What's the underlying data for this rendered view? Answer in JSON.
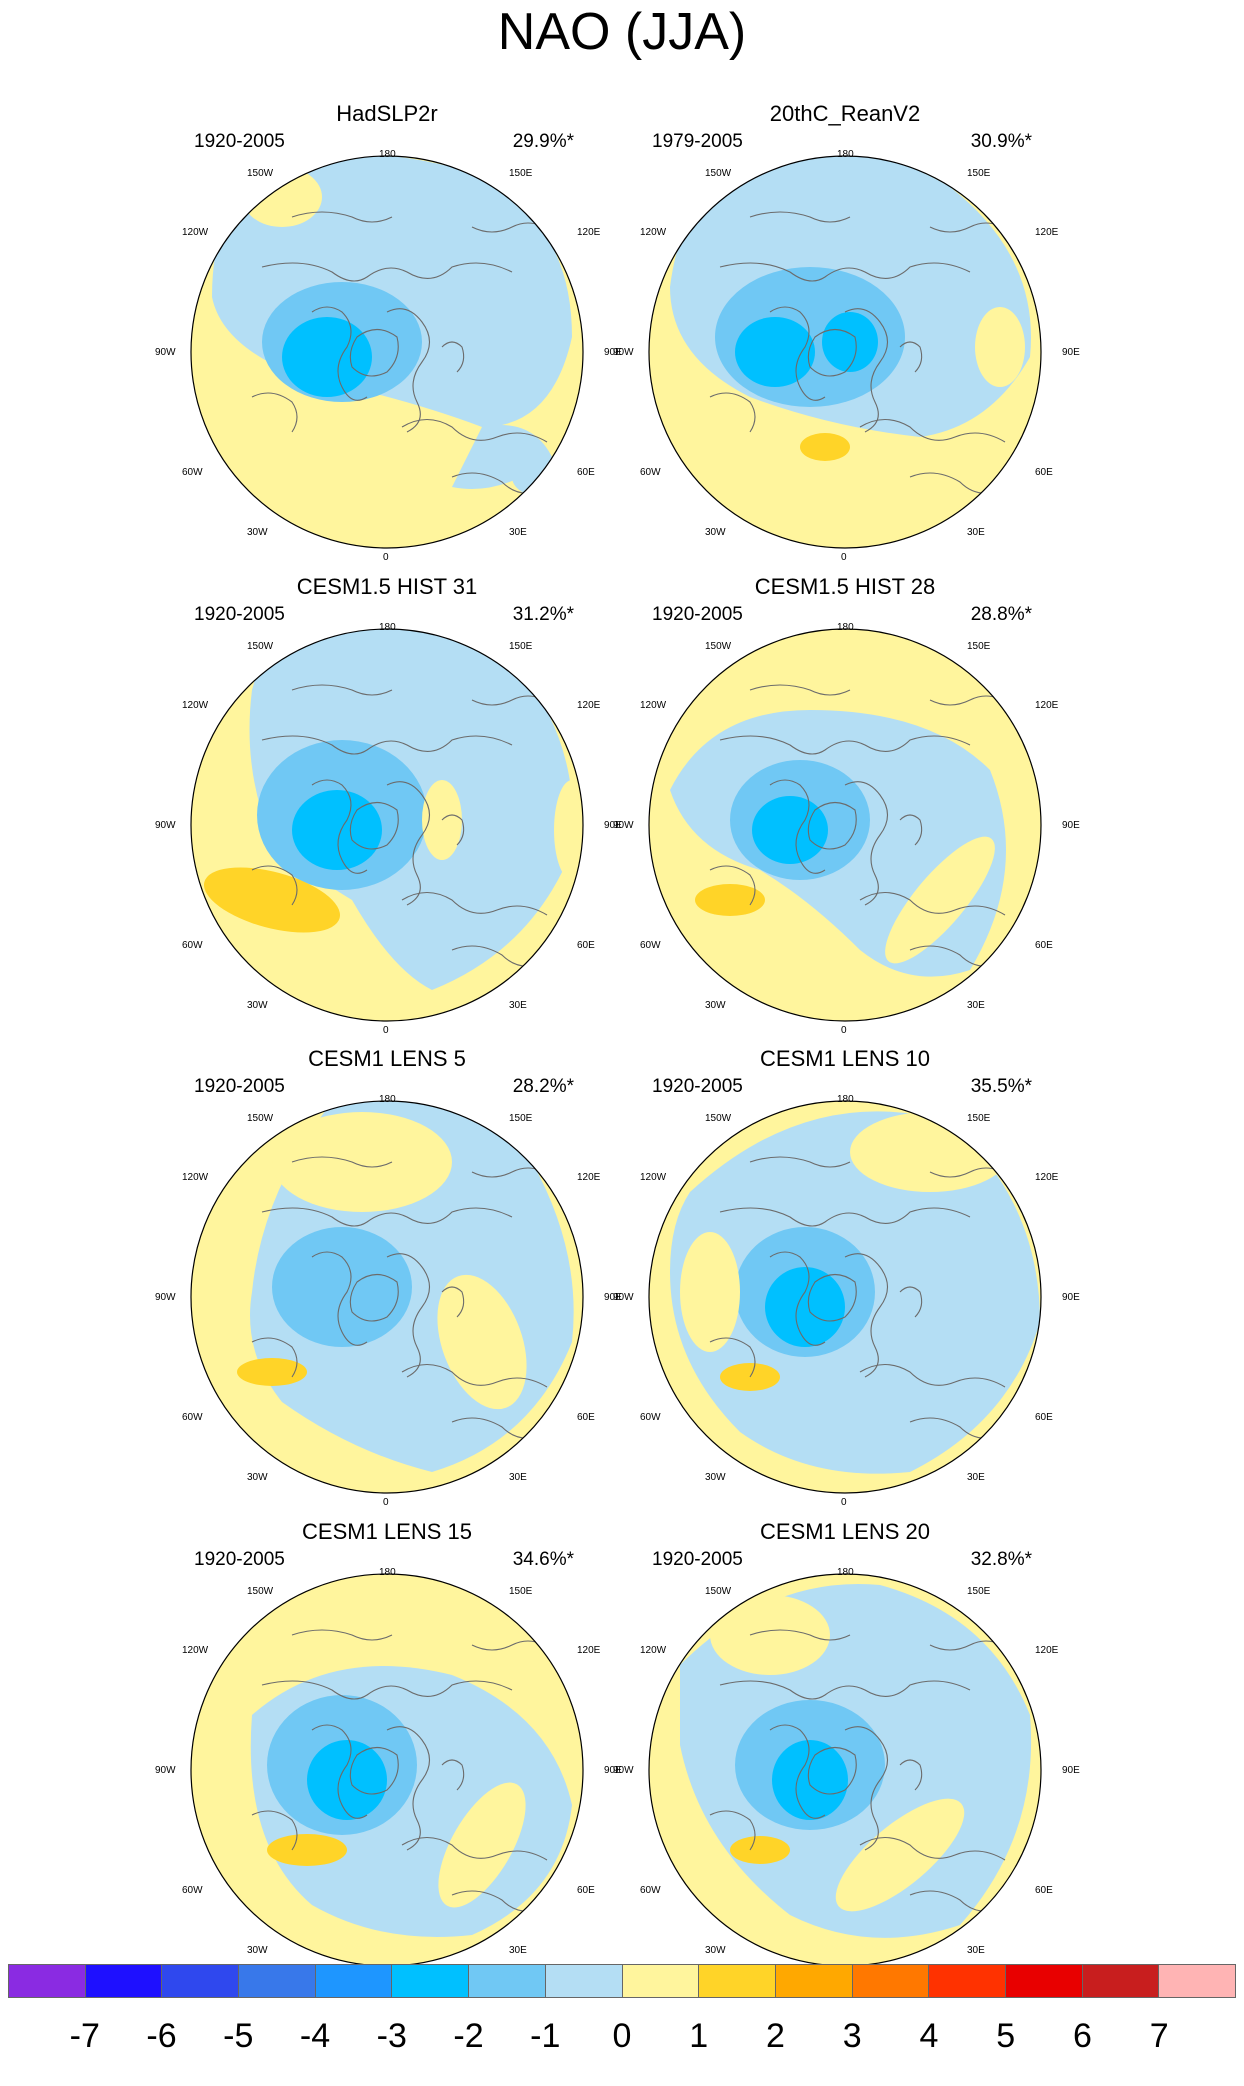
{
  "title": "NAO (JJA)",
  "lon_labels": [
    "180",
    "150W",
    "150E",
    "120W",
    "120E",
    "90W",
    "90E",
    "60W",
    "60E",
    "30W",
    "30E",
    "0"
  ],
  "colors": {
    "land_outline": "#6b6b6b",
    "border": "#000000"
  },
  "panels": [
    {
      "title": "HadSLP2r",
      "period": "1920-2005",
      "variance": "29.9%*",
      "variant": "obs"
    },
    {
      "title": "20thC_ReanV2",
      "period": "1979-2005",
      "variance": "30.9%*",
      "variant": "rean"
    },
    {
      "title": "CESM1.5 HIST 31",
      "period": "1920-2005",
      "variance": "31.2%*",
      "variant": "hist31"
    },
    {
      "title": "CESM1.5 HIST 28",
      "period": "1920-2005",
      "variance": "28.8%*",
      "variant": "hist28"
    },
    {
      "title": "CESM1 LENS 5",
      "period": "1920-2005",
      "variance": "28.2%*",
      "variant": "lens5"
    },
    {
      "title": "CESM1 LENS 10",
      "period": "1920-2005",
      "variance": "35.5%*",
      "variant": "lens10"
    },
    {
      "title": "CESM1 LENS 15",
      "period": "1920-2005",
      "variance": "34.6%*",
      "variant": "lens15"
    },
    {
      "title": "CESM1 LENS 20",
      "period": "1920-2005",
      "variance": "32.8%*",
      "variant": "lens20"
    }
  ],
  "colorbar": {
    "labels": [
      "-7",
      "-6",
      "-5",
      "-4",
      "-3",
      "-2",
      "-1",
      "0",
      "1",
      "2",
      "3",
      "4",
      "5",
      "6",
      "7"
    ],
    "colors": [
      "#8a2be2",
      "#1e10ff",
      "#2f48ee",
      "#3878ea",
      "#1e96ff",
      "#00c0ff",
      "#70c8f4",
      "#b4def4",
      "#fff59d",
      "#ffd428",
      "#ffa800",
      "#ff7800",
      "#ff3200",
      "#e80000",
      "#c81e1e",
      "#ffb4b4"
    ]
  }
}
